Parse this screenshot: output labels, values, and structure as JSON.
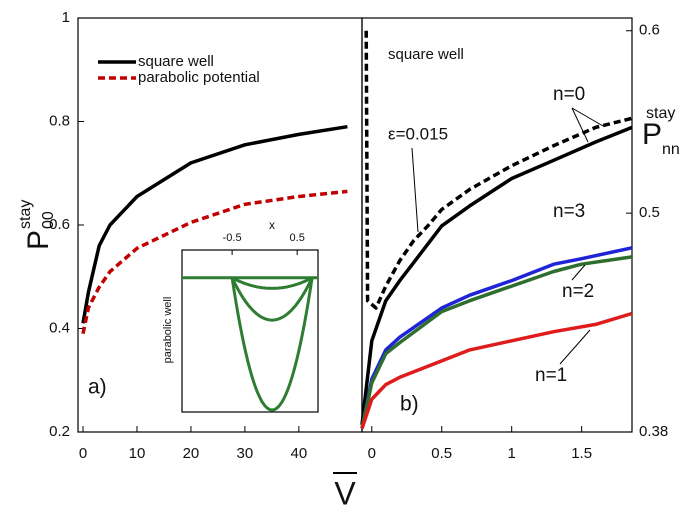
{
  "chart_data": [
    {
      "type": "line",
      "x_label": "V",
      "y_label": {
        "main": "P",
        "sub": "00",
        "sup": "stay"
      },
      "xlim": [
        -0.93,
        51.7
      ],
      "xticks": [
        0,
        10,
        20,
        30,
        40
      ],
      "ylim": [
        0.2,
        1
      ],
      "yticks": [
        0.2,
        0.4,
        0.6,
        0.8,
        1
      ],
      "x": [
        0,
        1,
        3,
        5,
        10,
        20,
        30,
        40,
        49
      ],
      "series": [
        {
          "name": "square well",
          "color": "#000000",
          "dash": false,
          "values": [
            0.41,
            0.47,
            0.56,
            0.6,
            0.655,
            0.72,
            0.755,
            0.775,
            0.79
          ]
        },
        {
          "name": "parabolic potential",
          "color": "#c00000",
          "dash": true,
          "values": [
            0.39,
            0.44,
            0.48,
            0.51,
            0.555,
            0.605,
            0.64,
            0.655,
            0.665
          ]
        }
      ],
      "legend": "upper left",
      "panel_label": "a)"
    },
    {
      "type": "line",
      "subtitle": "square well",
      "y_label": {
        "main": "P",
        "sub": "nn",
        "sup": "stay"
      },
      "xlim": [
        -0.07,
        1.86
      ],
      "xticks": [
        0,
        0.5,
        1,
        1.5
      ],
      "ylim": [
        0.38,
        0.607
      ],
      "yticks": [
        0.38,
        0.5,
        0.6
      ],
      "y_side": "right",
      "series": [
        {
          "name": "ε=0.015",
          "color": "#000000",
          "dash": true,
          "x": [
            -0.04,
            -0.03,
            0.03,
            0.1,
            0.2,
            0.3,
            0.4,
            0.5,
            0.7,
            1.0,
            1.3,
            1.6,
            1.86
          ],
          "values": [
            0.6,
            0.452,
            0.448,
            0.46,
            0.474,
            0.485,
            0.493,
            0.502,
            0.513,
            0.526,
            0.537,
            0.547,
            0.552
          ]
        },
        {
          "name": "n=0",
          "color": "#000000",
          "dash": false,
          "x": [
            -0.07,
            0,
            0.1,
            0.2,
            0.3,
            0.5,
            0.7,
            1.0,
            1.3,
            1.6,
            1.86
          ],
          "values": [
            0.384,
            0.43,
            0.452,
            0.463,
            0.473,
            0.493,
            0.504,
            0.519,
            0.529,
            0.539,
            0.547
          ]
        },
        {
          "name": "n=3",
          "color": "#1f24d6",
          "dash": false,
          "x": [
            -0.07,
            0,
            0.1,
            0.2,
            0.5,
            0.7,
            1.0,
            1.3,
            1.5,
            1.86
          ],
          "values": [
            0.382,
            0.409,
            0.425,
            0.432,
            0.448,
            0.455,
            0.463,
            0.472,
            0.475,
            0.481
          ]
        },
        {
          "name": "n=2",
          "color": "#2e6e2e",
          "dash": false,
          "x": [
            -0.07,
            0,
            0.1,
            0.2,
            0.5,
            0.7,
            1.0,
            1.3,
            1.5,
            1.86
          ],
          "values": [
            0.382,
            0.407,
            0.423,
            0.429,
            0.446,
            0.452,
            0.46,
            0.468,
            0.472,
            0.476
          ]
        },
        {
          "name": "n=1",
          "color": "#e01b1b",
          "dash": false,
          "x": [
            -0.07,
            0,
            0.1,
            0.2,
            0.5,
            0.7,
            1.0,
            1.3,
            1.6,
            1.86
          ],
          "values": [
            0.382,
            0.398,
            0.406,
            0.41,
            0.419,
            0.425,
            0.43,
            0.435,
            0.439,
            0.445
          ]
        }
      ],
      "panel_label": "b)"
    },
    {
      "type": "wells",
      "x_label": "x",
      "y_label": "parabolic well",
      "xlim": [
        -1.27,
        0.82
      ],
      "xticks": [
        -0.5,
        0.5
      ],
      "ylim": [
        -1.015,
        0.21
      ],
      "well_edges": [
        -0.5,
        0.73
      ],
      "color": "#2e7d32",
      "values": [
        -0.08,
        -0.32,
        -1
      ]
    }
  ]
}
